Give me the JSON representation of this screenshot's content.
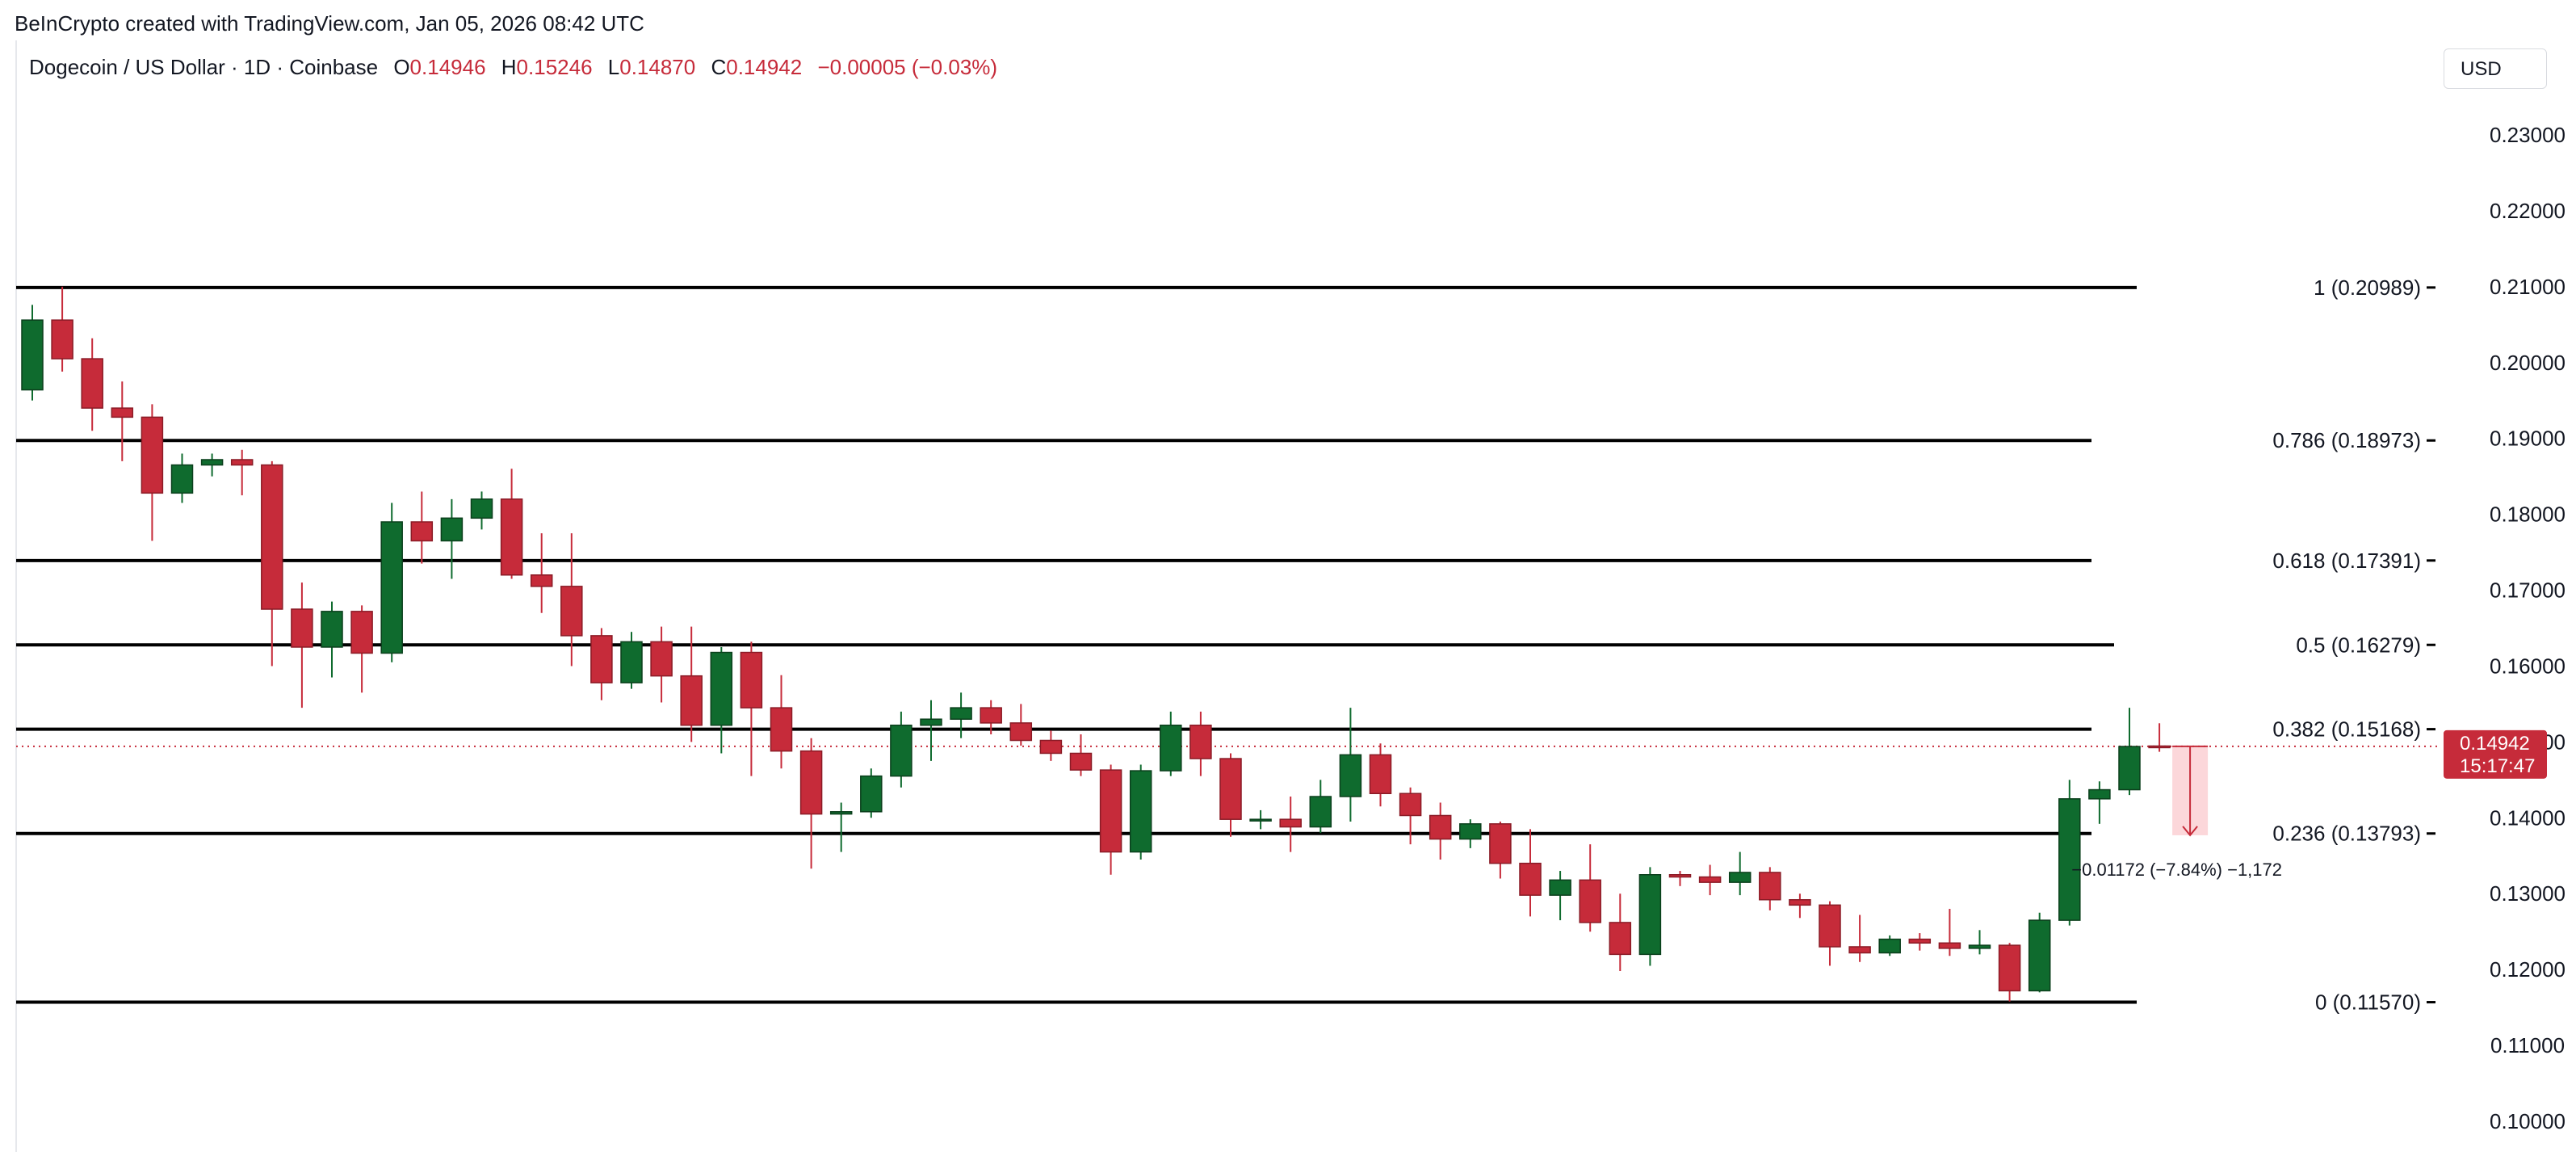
{
  "credit": "BeInCrypto created with TradingView.com, Jan 05, 2026 08:42 UTC",
  "legend": {
    "symbol": "Dogecoin / US Dollar · 1D · Coinbase",
    "o_label": "O",
    "o_value": "0.14946",
    "h_label": "H",
    "h_value": "0.15246",
    "l_label": "L",
    "l_value": "0.14870",
    "c_label": "C",
    "c_value": "0.14942",
    "change": "−0.00005 (−0.03%)"
  },
  "currency": "USD",
  "colors": {
    "up": "#0f6b2e",
    "down": "#c62b3a",
    "fib_line": "#000000",
    "axis_text": "#131722"
  },
  "chart_data": {
    "type": "candlestick",
    "y_axis": {
      "min": 0.0955,
      "max": 0.2383,
      "side": "right",
      "ticks": [
        0.23,
        0.22,
        0.21,
        0.2,
        0.19,
        0.18,
        0.17,
        0.16,
        0.15,
        0.14,
        0.13,
        0.12,
        0.11,
        0.1
      ],
      "tick_labels": [
        "0.23000",
        "0.22000",
        "0.21000",
        "0.20000",
        "0.19000",
        "0.18000",
        "0.17000",
        "0.16000",
        "0.15000",
        "0.14000",
        "0.13000",
        "0.12000",
        "0.11000",
        "0.10000"
      ]
    },
    "current_price": {
      "value": 0.14942,
      "label": "0.14942",
      "countdown": "15:17:47"
    },
    "fib_levels": [
      {
        "value": 0.20989,
        "label": "1 (0.20989)"
      },
      {
        "value": 0.18973,
        "label": "0.786 (0.18973)"
      },
      {
        "value": 0.17391,
        "label": "0.618 (0.17391)"
      },
      {
        "value": 0.16279,
        "label": "0.5 (0.16279)"
      },
      {
        "value": 0.15168,
        "label": "0.382 (0.15168)"
      },
      {
        "value": 0.13793,
        "label": "0.236 (0.13793)"
      },
      {
        "value": 0.1157,
        "label": "0 (0.11570)"
      }
    ],
    "measure": {
      "from": 0.14942,
      "to": 0.1377,
      "label": "−0.01172 (−7.84%) −1,172"
    },
    "candles": [
      [
        0.1964,
        0.2076,
        0.195,
        0.2056
      ],
      [
        0.2056,
        0.21,
        0.1988,
        0.2005
      ],
      [
        0.2005,
        0.2032,
        0.191,
        0.194
      ],
      [
        0.194,
        0.1975,
        0.187,
        0.1928
      ],
      [
        0.1928,
        0.1945,
        0.1765,
        0.1828
      ],
      [
        0.1828,
        0.188,
        0.1815,
        0.1865
      ],
      [
        0.1865,
        0.188,
        0.185,
        0.1872
      ],
      [
        0.1872,
        0.1885,
        0.1825,
        0.1865
      ],
      [
        0.1865,
        0.187,
        0.16,
        0.1675
      ],
      [
        0.1675,
        0.171,
        0.1545,
        0.1625
      ],
      [
        0.1625,
        0.1685,
        0.1585,
        0.1672
      ],
      [
        0.1672,
        0.168,
        0.1565,
        0.1617
      ],
      [
        0.1617,
        0.1815,
        0.1605,
        0.179
      ],
      [
        0.179,
        0.183,
        0.1735,
        0.1765
      ],
      [
        0.1765,
        0.182,
        0.1715,
        0.1795
      ],
      [
        0.1795,
        0.183,
        0.178,
        0.182
      ],
      [
        0.182,
        0.186,
        0.1715,
        0.172
      ],
      [
        0.172,
        0.1775,
        0.167,
        0.1705
      ],
      [
        0.1705,
        0.1775,
        0.16,
        0.164
      ],
      [
        0.164,
        0.165,
        0.1555,
        0.1578
      ],
      [
        0.1578,
        0.1645,
        0.157,
        0.1632
      ],
      [
        0.1632,
        0.1652,
        0.1552,
        0.1587
      ],
      [
        0.1587,
        0.1652,
        0.15,
        0.1522
      ],
      [
        0.1522,
        0.1625,
        0.1485,
        0.1618
      ],
      [
        0.1618,
        0.1632,
        0.1455,
        0.1545
      ],
      [
        0.1545,
        0.1588,
        0.1465,
        0.1488
      ],
      [
        0.1488,
        0.1505,
        0.1333,
        0.1405
      ],
      [
        0.1405,
        0.142,
        0.1355,
        0.1408
      ],
      [
        0.1408,
        0.1465,
        0.14,
        0.1455
      ],
      [
        0.1455,
        0.154,
        0.144,
        0.1522
      ],
      [
        0.1522,
        0.1555,
        0.1475,
        0.153
      ],
      [
        0.153,
        0.1565,
        0.1505,
        0.1545
      ],
      [
        0.1545,
        0.1555,
        0.151,
        0.1525
      ],
      [
        0.1525,
        0.155,
        0.1495,
        0.1502
      ],
      [
        0.1502,
        0.1515,
        0.1475,
        0.1485
      ],
      [
        0.1485,
        0.151,
        0.1455,
        0.1463
      ],
      [
        0.1463,
        0.147,
        0.1325,
        0.1355
      ],
      [
        0.1355,
        0.147,
        0.1345,
        0.1462
      ],
      [
        0.1462,
        0.154,
        0.1455,
        0.1522
      ],
      [
        0.1522,
        0.154,
        0.1455,
        0.1478
      ],
      [
        0.1478,
        0.1485,
        0.1375,
        0.1398
      ],
      [
        0.1398,
        0.141,
        0.1385,
        0.1398
      ],
      [
        0.1398,
        0.1428,
        0.1355,
        0.1388
      ],
      [
        0.1388,
        0.145,
        0.138,
        0.1428
      ],
      [
        0.1428,
        0.1545,
        0.1395,
        0.1483
      ],
      [
        0.1483,
        0.1498,
        0.1415,
        0.1432
      ],
      [
        0.1432,
        0.144,
        0.1365,
        0.1403
      ],
      [
        0.1403,
        0.142,
        0.1345,
        0.1372
      ],
      [
        0.1372,
        0.1398,
        0.136,
        0.1392
      ],
      [
        0.1392,
        0.1395,
        0.132,
        0.134
      ],
      [
        0.134,
        0.1385,
        0.127,
        0.1298
      ],
      [
        0.1298,
        0.133,
        0.1265,
        0.1318
      ],
      [
        0.1318,
        0.1365,
        0.125,
        0.1262
      ],
      [
        0.1262,
        0.13,
        0.1198,
        0.122
      ],
      [
        0.122,
        0.1335,
        0.1205,
        0.1325
      ],
      [
        0.1325,
        0.133,
        0.131,
        0.1322
      ],
      [
        0.1322,
        0.1338,
        0.1298,
        0.1315
      ],
      [
        0.1315,
        0.1355,
        0.1298,
        0.1328
      ],
      [
        0.1328,
        0.1335,
        0.1278,
        0.1292
      ],
      [
        0.1292,
        0.13,
        0.1268,
        0.1285
      ],
      [
        0.1285,
        0.129,
        0.1205,
        0.123
      ],
      [
        0.123,
        0.1272,
        0.121,
        0.1222
      ],
      [
        0.1222,
        0.1245,
        0.1218,
        0.124
      ],
      [
        0.124,
        0.1248,
        0.1225,
        0.1235
      ],
      [
        0.1235,
        0.128,
        0.1218,
        0.1228
      ],
      [
        0.1228,
        0.1252,
        0.122,
        0.1232
      ],
      [
        0.1232,
        0.1235,
        0.1158,
        0.1172
      ],
      [
        0.1172,
        0.1275,
        0.117,
        0.1265
      ],
      [
        0.1265,
        0.145,
        0.1258,
        0.1425
      ],
      [
        0.1425,
        0.1448,
        0.1392,
        0.1437
      ],
      [
        0.1437,
        0.1545,
        0.143,
        0.1494
      ],
      [
        0.14946,
        0.15246,
        0.1487,
        0.14942
      ]
    ]
  }
}
